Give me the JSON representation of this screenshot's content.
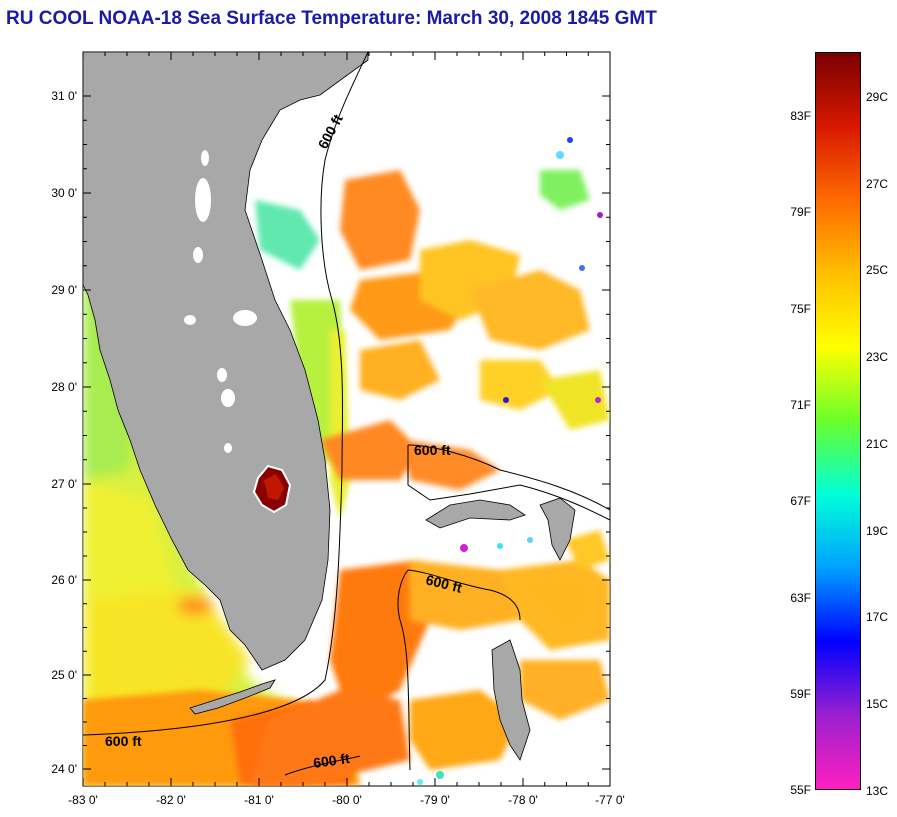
{
  "title": "RU COOL  NOAA-18  Sea Surface Temperature:  March 30, 2008 1845 GMT",
  "map": {
    "lon_ticks": [
      "-83 0'",
      "-82 0'",
      "-81 0'",
      "-80 0'",
      "-79 0'",
      "-78 0'",
      "-77 0'"
    ],
    "lat_ticks": [
      "31 0'",
      "30 0'",
      "29 0'",
      "28 0'",
      "27 0'",
      "26 0'",
      "25 0'",
      "24 0'"
    ],
    "contour_labels": [
      "600 ft",
      "600 ft",
      "600 ft",
      "600 ft",
      "600 ft"
    ],
    "colors": {
      "land": "#a8a8a8",
      "cloud": "#ffffff",
      "coast": "#000000"
    }
  },
  "colorbar": {
    "fahrenheit_labels": [
      "83F",
      "79F",
      "75F",
      "71F",
      "67F",
      "63F",
      "59F",
      "55F"
    ],
    "celsius_labels": [
      "29C",
      "27C",
      "25C",
      "23C",
      "21C",
      "19C",
      "17C",
      "15C",
      "13C"
    ],
    "stops": [
      "#7a0000",
      "#d81800",
      "#ff6a00",
      "#ffc000",
      "#ffff00",
      "#6aff2a",
      "#00ffd8",
      "#00a0ff",
      "#0000ff",
      "#9a20d0",
      "#ff20c0"
    ]
  }
}
